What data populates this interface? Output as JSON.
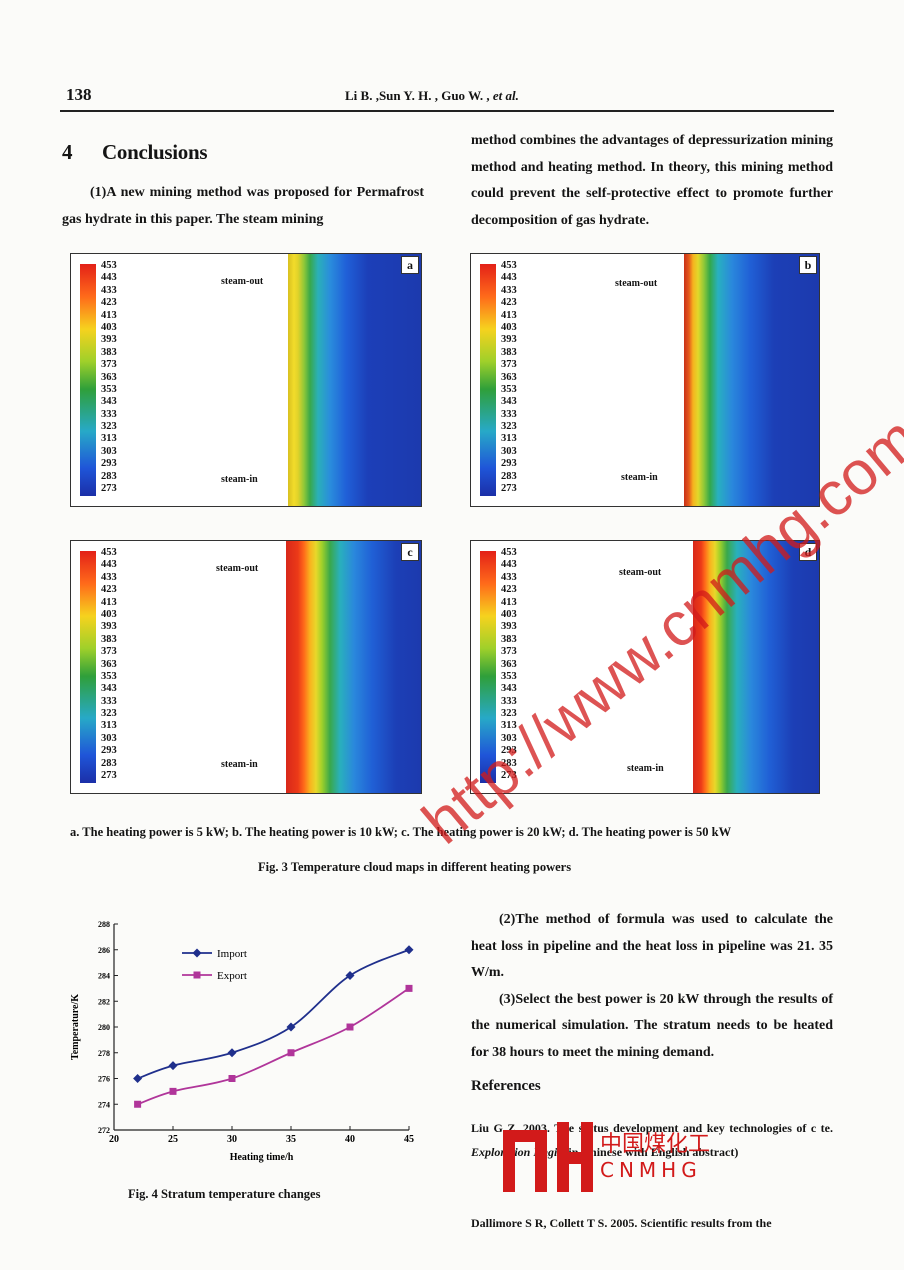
{
  "header": {
    "page_number": "138",
    "authors": "Li B. ,Sun Y. H. , Guo W. ,",
    "authors_et_al": "et al."
  },
  "section": {
    "number": "4",
    "title": "Conclusions"
  },
  "left_text": "(1)A new mining method was proposed for Permafrost gas hydrate in this paper. The steam mining",
  "right_text_top": "method combines the advantages of depressurization mining method and heating method. In theory, this mining method could prevent the self-protective effect to promote further decomposition of gas hydrate.",
  "colorbar_ticks": [
    "453",
    "443",
    "433",
    "423",
    "413",
    "403",
    "393",
    "383",
    "373",
    "363",
    "353",
    "343",
    "333",
    "323",
    "313",
    "303",
    "293",
    "283",
    "273"
  ],
  "panels": [
    {
      "letter": "a",
      "out": "steam-out",
      "in": "steam-in"
    },
    {
      "letter": "b",
      "out": "steam-out",
      "in": "steam-in"
    },
    {
      "letter": "c",
      "out": "steam-out",
      "in": "steam-in"
    },
    {
      "letter": "d",
      "out": "steam-out",
      "in": "steam-in"
    }
  ],
  "fig3_subcaption": "a. The heating power is 5 kW; b. The heating power is 10 kW; c. The heating power is 20 kW; d. The heating power is 50 kW",
  "fig3_caption": "Fig. 3 Temperature cloud maps in different heating powers",
  "fig4_caption": "Fig. 4 Stratum temperature changes",
  "right_paras": [
    "(2)The method of formula was used to calculate the heat loss in pipeline and the heat loss in pipeline was 21. 35 W/m.",
    "(3)Select the best power is 20 kW through the results of the numerical simulation. The stratum needs to be heated for 38 hours to meet the mining demand."
  ],
  "refs_title": "References",
  "ref1": {
    "pre": "Liu G Z. 2003. The status development and key technologies of c",
    "mid": "te.",
    "journal": "Exploration Engi-",
    "post": "(in Chinese with English abstract)"
  },
  "ref2": "Dallimore S R, Collett T S. 2005. Scientific results from the",
  "watermark": "http://www.cnmhg.com",
  "logo": {
    "cn": "中国煤化工",
    "en": "CNMHG"
  },
  "chart_data": {
    "type": "line",
    "x": [
      22,
      25,
      30,
      35,
      40,
      45
    ],
    "series": [
      {
        "name": "Import",
        "values": [
          276,
          277,
          278,
          280,
          284,
          286
        ],
        "color": "#1f2f8c",
        "marker": "diamond"
      },
      {
        "name": "Export",
        "values": [
          274,
          275,
          276,
          278,
          280,
          283
        ],
        "color": "#b0359a",
        "marker": "square"
      }
    ],
    "xlabel": "Heating time/h",
    "ylabel": "Temperature/K",
    "xlim": [
      20,
      45
    ],
    "ylim": [
      272,
      288
    ],
    "xticks": [
      "20",
      "25",
      "30",
      "35",
      "40",
      "45"
    ],
    "yticks": [
      "272",
      "274",
      "276",
      "278",
      "280",
      "282",
      "284",
      "286",
      "288"
    ],
    "legend": "top-left",
    "grid": false
  }
}
